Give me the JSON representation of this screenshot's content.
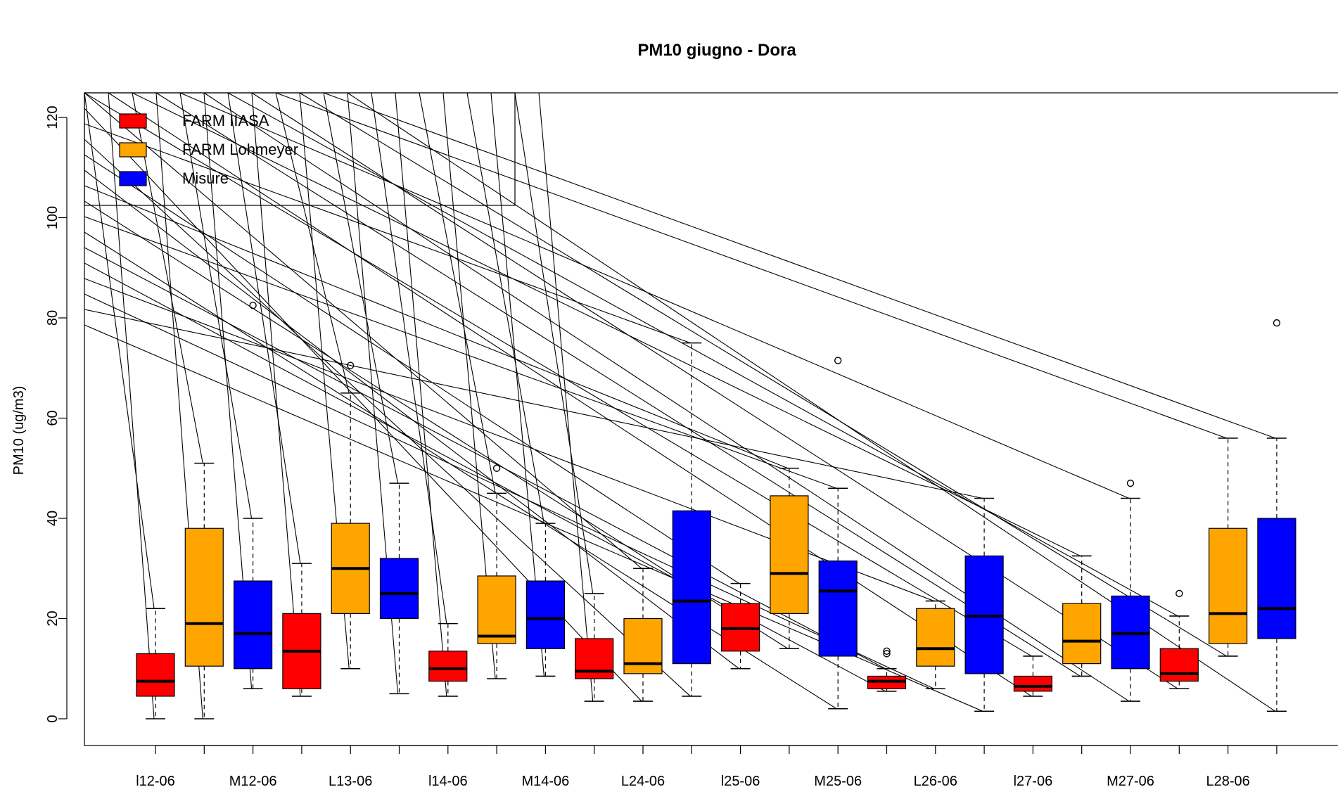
{
  "chart_data": {
    "type": "box",
    "title": "PM10 giugno - Dora",
    "xlabel": "",
    "ylabel": "PM10 (ug/m3)",
    "ylim": [
      -5,
      125
    ],
    "y_ticks": [
      0,
      20,
      40,
      60,
      80,
      100,
      120
    ],
    "grid": false,
    "legend_position": "top-left",
    "series": [
      {
        "name": "FARM IIASA",
        "color": "#FF0000"
      },
      {
        "name": "FARM Lohmeyer",
        "color": "#FFA500"
      },
      {
        "name": "Misure",
        "color": "#0000FF"
      }
    ],
    "x_tick_labels": [
      "l12-06",
      "M12-06",
      "L13-06",
      "l14-06",
      "M14-06",
      "L24-06",
      "l25-06",
      "M25-06",
      "L26-06",
      "l27-06",
      "M27-06",
      "L28-06"
    ],
    "boxes": [
      {
        "series": "FARM IIASA",
        "whisker_low": 0,
        "q1": 4.5,
        "median": 7.5,
        "q3": 13,
        "whisker_high": 22,
        "outliers": []
      },
      {
        "series": "FARM Lohmeyer",
        "whisker_low": 0,
        "q1": 10.5,
        "median": 19,
        "q3": 38,
        "whisker_high": 51,
        "outliers": []
      },
      {
        "series": "Misure",
        "whisker_low": 6,
        "q1": 10,
        "median": 17,
        "q3": 27.5,
        "whisker_high": 40,
        "outliers": [
          82.5
        ]
      },
      {
        "series": "FARM IIASA",
        "whisker_low": 4.5,
        "q1": 6,
        "median": 13.5,
        "q3": 21,
        "whisker_high": 31,
        "outliers": []
      },
      {
        "series": "FARM Lohmeyer",
        "whisker_low": 10,
        "q1": 21,
        "median": 30,
        "q3": 39,
        "whisker_high": 65,
        "outliers": [
          70.5
        ]
      },
      {
        "series": "Misure",
        "whisker_low": 5,
        "q1": 20,
        "median": 25,
        "q3": 32,
        "whisker_high": 47,
        "outliers": []
      },
      {
        "series": "FARM IIASA",
        "whisker_low": 4.5,
        "q1": 7.5,
        "median": 10,
        "q3": 13.5,
        "whisker_high": 19,
        "outliers": []
      },
      {
        "series": "FARM Lohmeyer",
        "whisker_low": 8,
        "q1": 15,
        "median": 16.5,
        "q3": 28.5,
        "whisker_high": 45,
        "outliers": [
          50
        ]
      },
      {
        "series": "Misure",
        "whisker_low": 8.5,
        "q1": 14,
        "median": 20,
        "q3": 27.5,
        "whisker_high": 39,
        "outliers": []
      },
      {
        "series": "FARM IIASA",
        "whisker_low": 3.5,
        "q1": 8,
        "median": 9.5,
        "q3": 16,
        "whisker_high": 25,
        "outliers": []
      },
      {
        "series": "FARM Lohmeyer",
        "whisker_low": 3.5,
        "q1": 9,
        "median": 11,
        "q3": 20,
        "whisker_high": 30,
        "outliers": []
      },
      {
        "series": "Misure",
        "whisker_low": 4.5,
        "q1": 11,
        "median": 23.5,
        "q3": 41.5,
        "whisker_high": 75,
        "outliers": []
      },
      {
        "series": "FARM IIASA",
        "whisker_low": 10,
        "q1": 13.5,
        "median": 18,
        "q3": 23,
        "whisker_high": 27,
        "outliers": []
      },
      {
        "series": "FARM Lohmeyer",
        "whisker_low": 14,
        "q1": 21,
        "median": 29,
        "q3": 44.5,
        "whisker_high": 50,
        "outliers": []
      },
      {
        "series": "Misure",
        "whisker_low": 2,
        "q1": 12.5,
        "median": 25.5,
        "q3": 31.5,
        "whisker_high": 46,
        "outliers": [
          71.5
        ]
      },
      {
        "series": "FARM IIASA",
        "whisker_low": 5.5,
        "q1": 6,
        "median": 7.5,
        "q3": 8.5,
        "whisker_high": 10,
        "outliers": [
          13,
          13.5
        ]
      },
      {
        "series": "FARM Lohmeyer",
        "whisker_low": 6,
        "q1": 10.5,
        "median": 14,
        "q3": 22,
        "whisker_high": 23.5,
        "outliers": []
      },
      {
        "series": "Misure",
        "whisker_low": 1.5,
        "q1": 9,
        "median": 20.5,
        "q3": 32.5,
        "whisker_high": 44,
        "outliers": []
      },
      {
        "series": "FARM IIASA",
        "whisker_low": 4.5,
        "q1": 5.5,
        "median": 6.5,
        "q3": 8.5,
        "whisker_high": 12.5,
        "outliers": []
      },
      {
        "series": "FARM Lohmeyer",
        "whisker_low": 8.5,
        "q1": 11,
        "median": 15.5,
        "q3": 23,
        "whisker_high": 32.5,
        "outliers": []
      },
      {
        "series": "Misure",
        "whisker_low": 3.5,
        "q1": 10,
        "median": 17,
        "q3": 24.5,
        "whisker_high": 44,
        "outliers": [
          47
        ]
      },
      {
        "series": "FARM IIASA",
        "whisker_low": 6,
        "q1": 7.5,
        "median": 9,
        "q3": 14,
        "whisker_high": 20.5,
        "outliers": [
          25
        ]
      },
      {
        "series": "FARM Lohmeyer",
        "whisker_low": 12.5,
        "q1": 15,
        "median": 21,
        "q3": 38,
        "whisker_high": 56,
        "outliers": []
      },
      {
        "series": "Misure",
        "whisker_low": 1.5,
        "q1": 16,
        "median": 22,
        "q3": 40,
        "whisker_high": 56,
        "outliers": [
          79
        ]
      }
    ]
  }
}
